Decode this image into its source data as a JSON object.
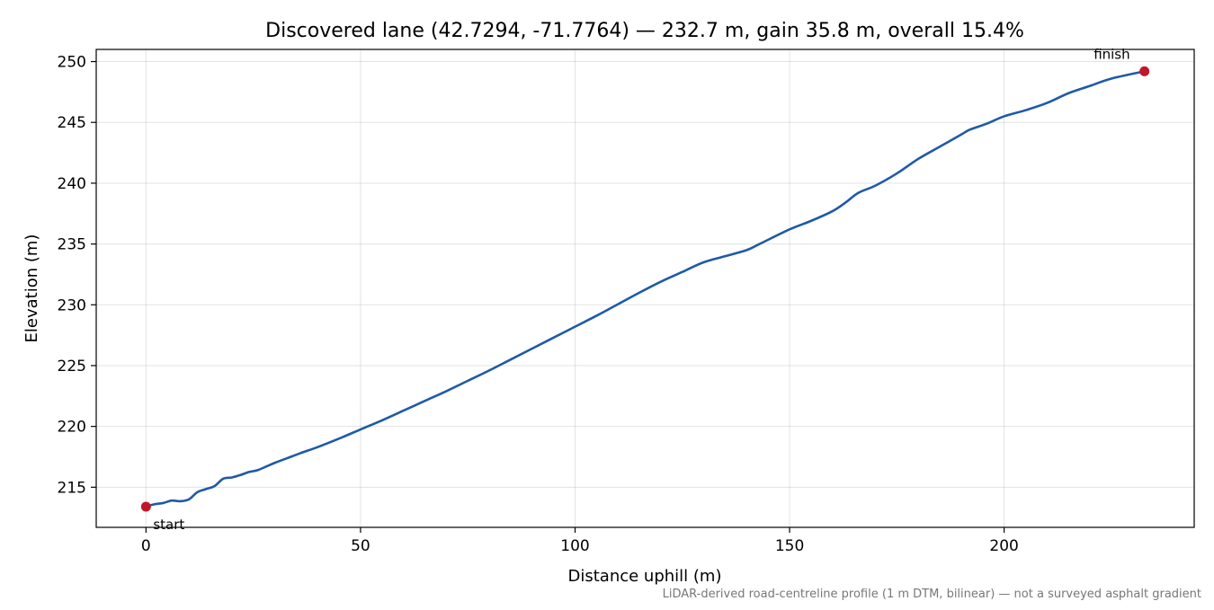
{
  "chart_data": {
    "type": "line",
    "title": "Discovered lane (42.7294, -71.7764) — 232.7 m, gain 35.8 m, overall 15.4%",
    "xlabel": "Distance uphill (m)",
    "ylabel": "Elevation (m)",
    "footnote": "LiDAR-derived road-centreline profile (1 m DTM, bilinear) — not a surveyed asphalt gradient",
    "xlim": [
      -11.6,
      244.3
    ],
    "ylim": [
      211.7,
      251.0
    ],
    "xticks": [
      0,
      50,
      100,
      150,
      200
    ],
    "yticks": [
      215,
      220,
      225,
      230,
      235,
      240,
      245,
      250
    ],
    "grid": true,
    "line_color": "#1f5aa6",
    "marker_color": "#c0182a",
    "series": [
      {
        "x": [
          0,
          2,
          4,
          6,
          8,
          10,
          12,
          14,
          16,
          18,
          20,
          22,
          24,
          26,
          28,
          30,
          33,
          36,
          40,
          45,
          50,
          55,
          60,
          65,
          70,
          75,
          80,
          85,
          90,
          95,
          100,
          105,
          110,
          115,
          120,
          125,
          130,
          135,
          140,
          143,
          150,
          155,
          160,
          163,
          166,
          170,
          175,
          180,
          185,
          190,
          192,
          196,
          200,
          205,
          210,
          215,
          220,
          225,
          232.7
        ],
        "y": [
          213.4,
          213.6,
          213.7,
          213.9,
          213.85,
          214.0,
          214.6,
          214.85,
          215.1,
          215.7,
          215.8,
          216.0,
          216.25,
          216.4,
          216.7,
          217.0,
          217.4,
          217.8,
          218.3,
          219.0,
          219.75,
          220.5,
          221.3,
          222.1,
          222.9,
          223.75,
          224.6,
          225.5,
          226.4,
          227.3,
          228.2,
          229.1,
          230.05,
          231.0,
          231.9,
          232.7,
          233.5,
          234.0,
          234.5,
          235.0,
          236.2,
          236.9,
          237.7,
          238.4,
          239.2,
          239.8,
          240.8,
          242.0,
          243.0,
          244.0,
          244.4,
          244.9,
          245.5,
          246.0,
          246.6,
          247.4,
          248.0,
          248.6,
          249.2
        ]
      }
    ],
    "annotations": [
      {
        "text": "start",
        "x": 0,
        "y": 213.4
      },
      {
        "text": "finish",
        "x": 232.7,
        "y": 249.2
      }
    ]
  }
}
